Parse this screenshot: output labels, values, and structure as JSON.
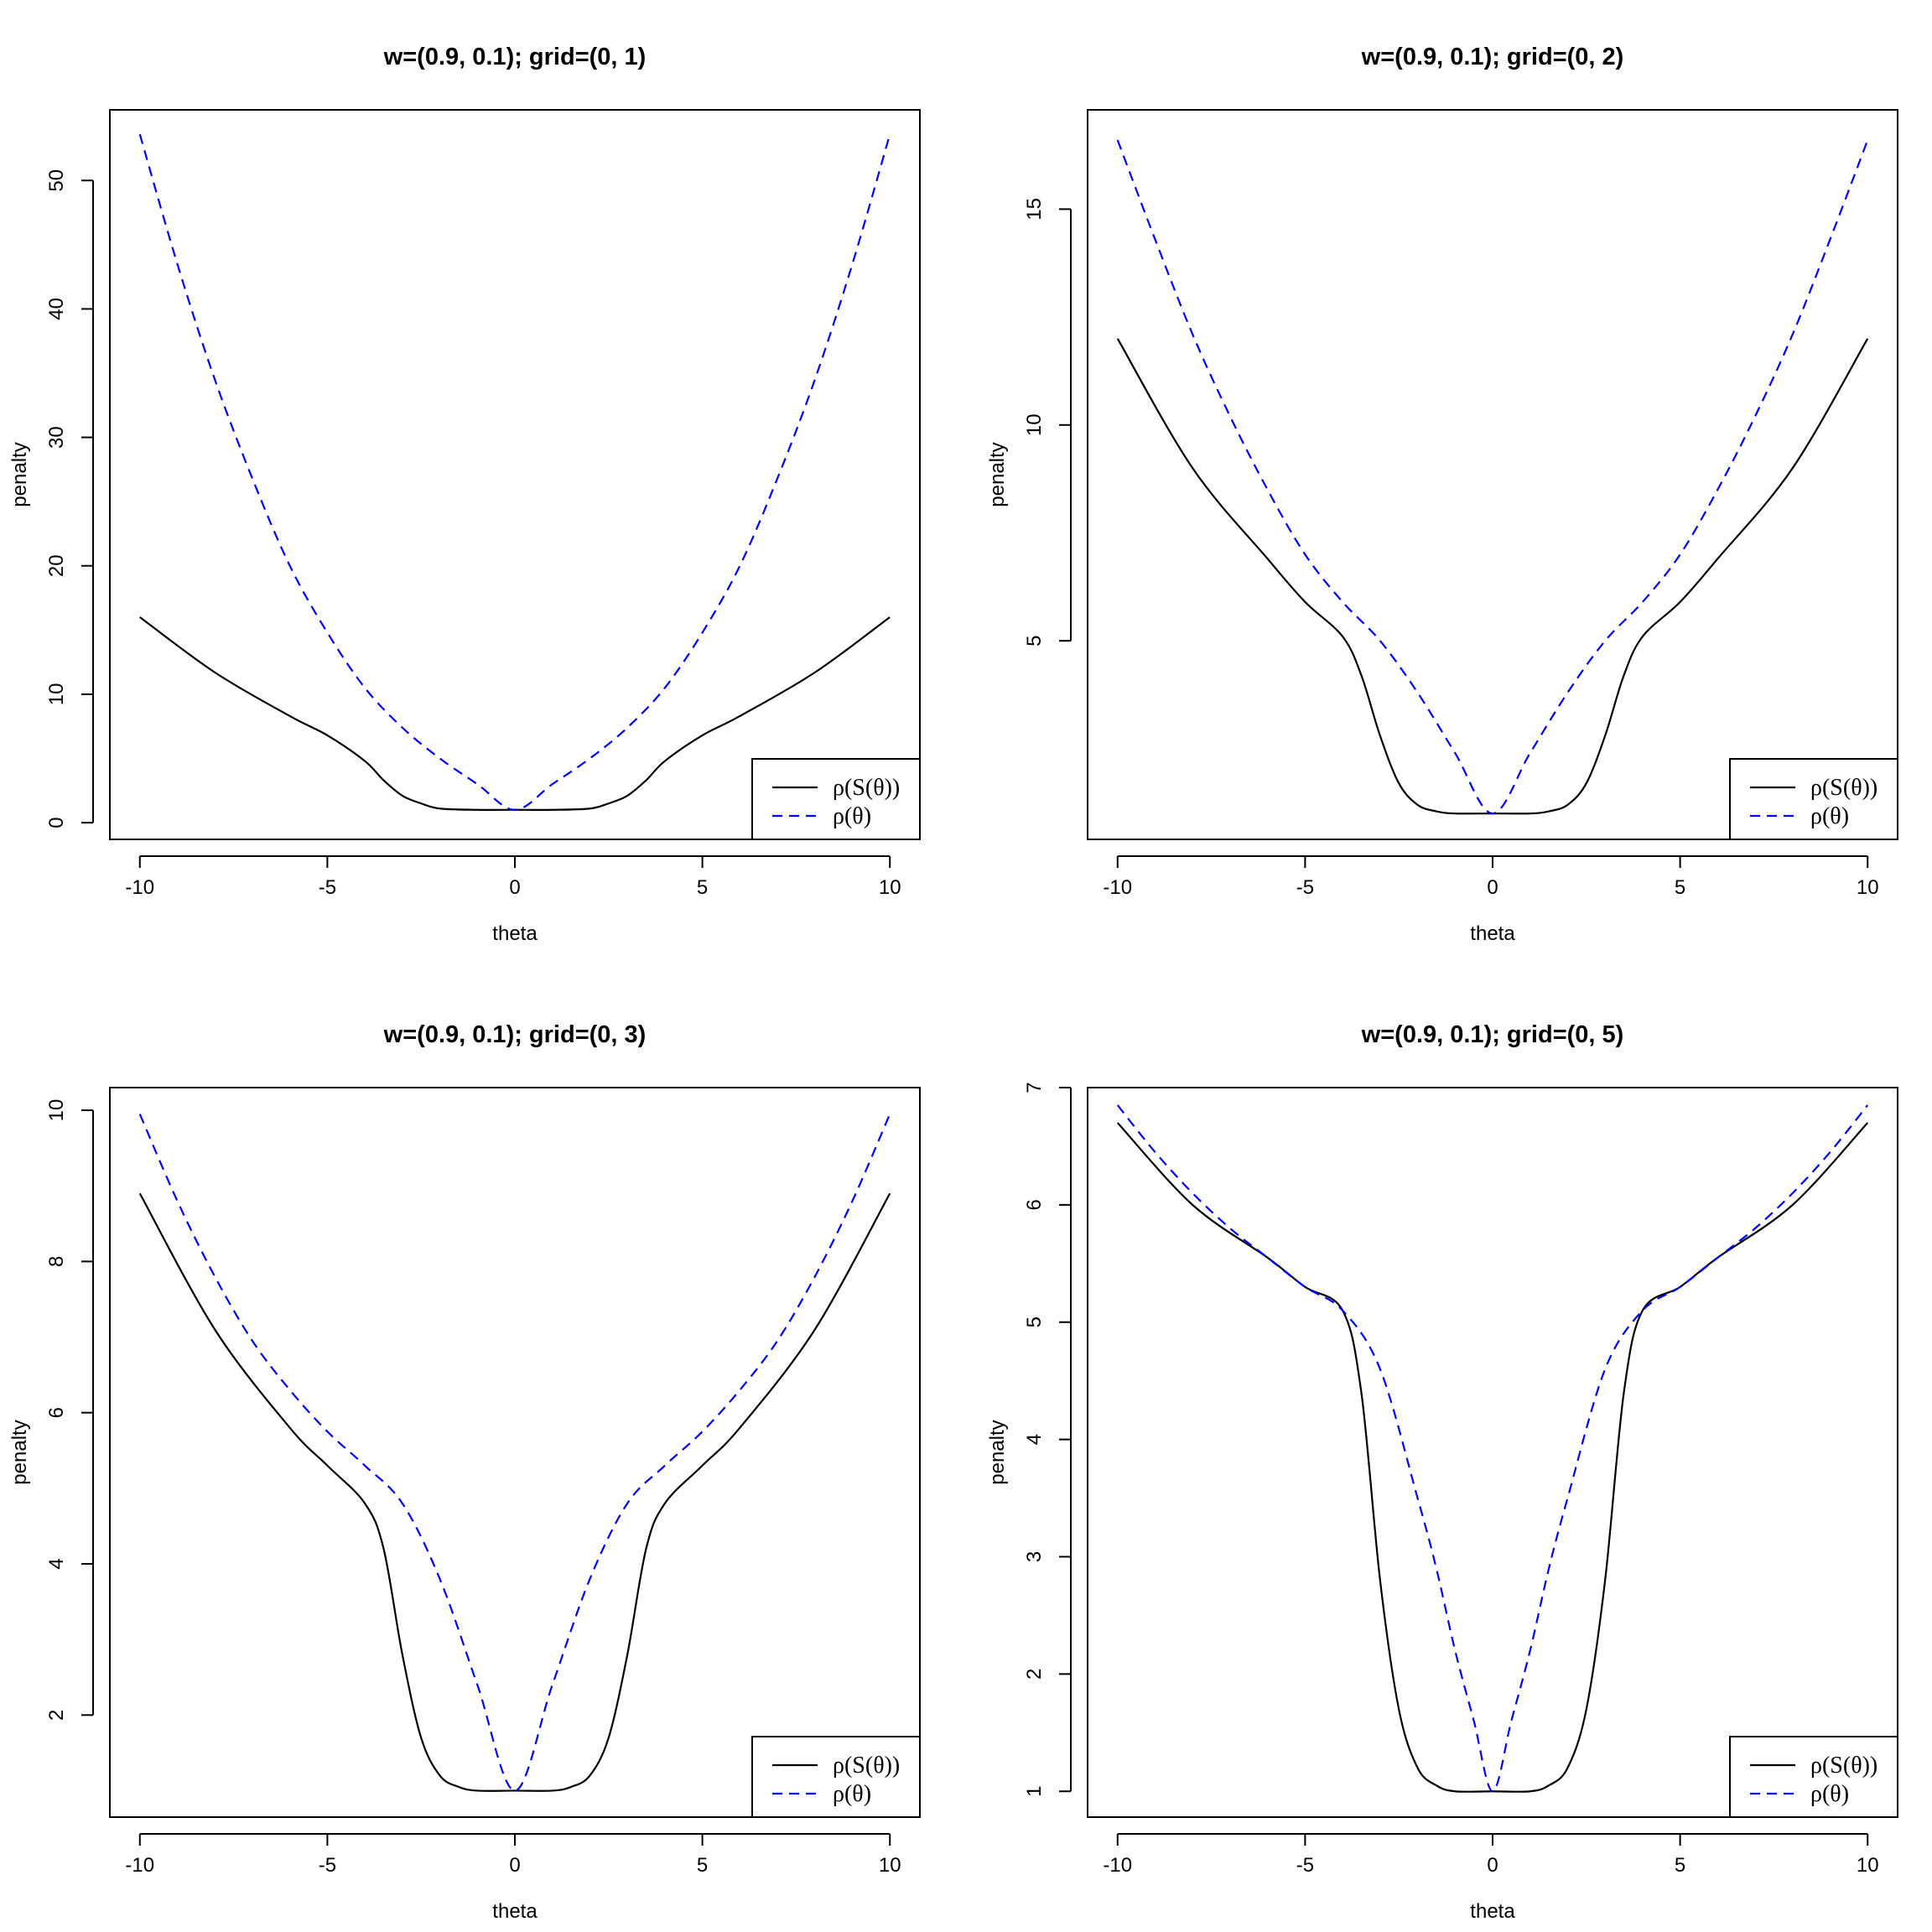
{
  "colors": {
    "series_solid": "#000000",
    "series_dashed": "#0000ff",
    "background": "#ffffff"
  },
  "chart_data": [
    {
      "type": "line",
      "title": "w=(0.9, 0.1); grid=(0, 1)",
      "xlabel": "theta",
      "ylabel": "penalty",
      "xlim": [
        -10.8,
        10.8
      ],
      "ylim": [
        -1.3,
        55.5
      ],
      "xticks": [
        -10,
        -5,
        0,
        5,
        10
      ],
      "xtick_labels": [
        "-10",
        "-5",
        "0",
        "5",
        "10"
      ],
      "yticks": [
        0,
        10,
        20,
        30,
        40,
        50
      ],
      "ytick_labels": [
        "0",
        "10",
        "20",
        "30",
        "40",
        "50"
      ],
      "legend_position": "bottom-right",
      "series": [
        {
          "name": "ρ(S(θ))",
          "style": "solid",
          "color": "#000000",
          "x": [
            -10,
            -8,
            -6,
            -5,
            -4,
            -3.5,
            -3,
            -2.5,
            -2,
            -1,
            0,
            1,
            2,
            2.5,
            3,
            3.5,
            4,
            5,
            6,
            8,
            10
          ],
          "y": [
            16.0,
            11.7,
            8.3,
            6.8,
            4.8,
            3.3,
            2.1,
            1.5,
            1.1,
            1.0,
            1.0,
            1.0,
            1.1,
            1.5,
            2.1,
            3.3,
            4.8,
            6.8,
            8.3,
            11.7,
            16.0
          ]
        },
        {
          "name": "ρ(θ)",
          "style": "dashed",
          "color": "#0000ff",
          "x": [
            -10,
            -9,
            -8,
            -7,
            -6,
            -5,
            -4,
            -3,
            -2,
            -1,
            0,
            1,
            2,
            3,
            4,
            5,
            6,
            7,
            8,
            9,
            10
          ],
          "y": [
            53.6,
            43.5,
            34.5,
            26.8,
            20.0,
            14.8,
            10.5,
            7.4,
            5.0,
            3.0,
            1.0,
            3.0,
            5.0,
            7.4,
            10.5,
            14.8,
            20.0,
            26.8,
            34.5,
            43.5,
            53.6
          ]
        }
      ]
    },
    {
      "type": "line",
      "title": "w=(0.9, 0.1); grid=(0, 2)",
      "xlabel": "theta",
      "ylabel": "penalty",
      "xlim": [
        -10.8,
        10.8
      ],
      "ylim": [
        0.4,
        17.3
      ],
      "xticks": [
        -10,
        -5,
        0,
        5,
        10
      ],
      "xtick_labels": [
        "-10",
        "-5",
        "0",
        "5",
        "10"
      ],
      "yticks": [
        5,
        10,
        15
      ],
      "ytick_labels": [
        "5",
        "10",
        "15"
      ],
      "legend_position": "bottom-right",
      "series": [
        {
          "name": "ρ(S(θ))",
          "style": "solid",
          "color": "#000000",
          "x": [
            -10,
            -8,
            -6,
            -5,
            -4,
            -3.5,
            -3,
            -2.5,
            -2,
            -1.5,
            -1,
            0,
            1,
            1.5,
            2,
            2.5,
            3,
            3.5,
            4,
            5,
            6,
            8,
            10
          ],
          "y": [
            12.0,
            9.0,
            6.9,
            5.9,
            5.1,
            4.2,
            2.8,
            1.7,
            1.2,
            1.05,
            1.0,
            1.0,
            1.0,
            1.05,
            1.2,
            1.7,
            2.8,
            4.2,
            5.1,
            5.9,
            6.9,
            9.0,
            12.0
          ]
        },
        {
          "name": "ρ(θ)",
          "style": "dashed",
          "color": "#0000ff",
          "x": [
            -10,
            -9,
            -8,
            -7,
            -6,
            -5,
            -4,
            -3,
            -2,
            -1,
            0,
            1,
            2,
            3,
            4,
            5,
            6,
            7,
            8,
            9,
            10
          ],
          "y": [
            16.6,
            14.3,
            12.1,
            10.2,
            8.5,
            7.0,
            5.9,
            5.0,
            3.8,
            2.4,
            1.0,
            2.4,
            3.8,
            5.0,
            5.9,
            7.0,
            8.5,
            10.2,
            12.1,
            14.3,
            16.6
          ]
        }
      ]
    },
    {
      "type": "line",
      "title": "w=(0.9, 0.1); grid=(0, 3)",
      "xlabel": "theta",
      "ylabel": "penalty",
      "xlim": [
        -10.8,
        10.8
      ],
      "ylim": [
        0.65,
        10.3
      ],
      "xticks": [
        -10,
        -5,
        0,
        5,
        10
      ],
      "xtick_labels": [
        "-10",
        "-5",
        "0",
        "5",
        "10"
      ],
      "yticks": [
        2,
        4,
        6,
        8,
        10
      ],
      "ytick_labels": [
        "2",
        "4",
        "6",
        "8",
        "10"
      ],
      "legend_position": "bottom-right",
      "series": [
        {
          "name": "ρ(S(θ))",
          "style": "solid",
          "color": "#000000",
          "x": [
            -10,
            -8,
            -6,
            -5,
            -4,
            -3.5,
            -3,
            -2.5,
            -2,
            -1.5,
            -1,
            0,
            1,
            1.5,
            2,
            2.5,
            3,
            3.5,
            4,
            5,
            6,
            8,
            10
          ],
          "y": [
            8.9,
            7.1,
            5.8,
            5.3,
            4.8,
            4.2,
            2.8,
            1.7,
            1.2,
            1.05,
            1.0,
            1.0,
            1.0,
            1.05,
            1.2,
            1.7,
            2.8,
            4.2,
            4.8,
            5.3,
            5.8,
            7.1,
            8.9
          ]
        },
        {
          "name": "ρ(θ)",
          "style": "dashed",
          "color": "#0000ff",
          "x": [
            -10,
            -9,
            -8,
            -7,
            -6,
            -5,
            -4,
            -3,
            -2,
            -1,
            0,
            1,
            2,
            3,
            4,
            5,
            6,
            7,
            8,
            9,
            10
          ],
          "y": [
            9.95,
            8.8,
            7.8,
            6.95,
            6.3,
            5.75,
            5.3,
            4.8,
            3.8,
            2.4,
            1.0,
            2.4,
            3.8,
            4.8,
            5.3,
            5.75,
            6.3,
            6.95,
            7.8,
            8.8,
            9.95
          ]
        }
      ]
    },
    {
      "type": "line",
      "title": "w=(0.9, 0.1); grid=(0, 5)",
      "xlabel": "theta",
      "ylabel": "penalty",
      "xlim": [
        -10.8,
        10.8
      ],
      "ylim": [
        0.78,
        7.0
      ],
      "xticks": [
        -10,
        -5,
        0,
        5,
        10
      ],
      "xtick_labels": [
        "-10",
        "-5",
        "0",
        "5",
        "10"
      ],
      "yticks": [
        1,
        2,
        3,
        4,
        5,
        6,
        7
      ],
      "ytick_labels": [
        "1",
        "2",
        "3",
        "4",
        "5",
        "6",
        "7"
      ],
      "legend_position": "bottom-right",
      "series": [
        {
          "name": "ρ(S(θ))",
          "style": "solid",
          "color": "#000000",
          "x": [
            -10,
            -8,
            -6,
            -5,
            -4,
            -3.5,
            -3,
            -2.5,
            -2,
            -1.5,
            -1,
            0,
            1,
            1.5,
            2,
            2.5,
            3,
            3.5,
            4,
            5,
            6,
            8,
            10
          ],
          "y": [
            6.7,
            6.0,
            5.55,
            5.3,
            5.1,
            4.4,
            2.8,
            1.7,
            1.2,
            1.05,
            1.0,
            1.0,
            1.0,
            1.05,
            1.2,
            1.7,
            2.8,
            4.4,
            5.1,
            5.3,
            5.55,
            6.0,
            6.7
          ]
        },
        {
          "name": "ρ(θ)",
          "style": "dashed",
          "color": "#0000ff",
          "x": [
            -10,
            -9,
            -8,
            -7,
            -6,
            -5,
            -4,
            -3,
            -2,
            -1.5,
            -1,
            -0.5,
            0,
            0.5,
            1,
            1.5,
            2,
            3,
            4,
            5,
            6,
            7,
            8,
            9,
            10
          ],
          "y": [
            6.85,
            6.45,
            6.1,
            5.8,
            5.55,
            5.3,
            5.1,
            4.6,
            3.5,
            2.9,
            2.2,
            1.6,
            1.0,
            1.6,
            2.2,
            2.9,
            3.5,
            4.6,
            5.1,
            5.3,
            5.55,
            5.8,
            6.1,
            6.45,
            6.85
          ]
        }
      ]
    }
  ]
}
